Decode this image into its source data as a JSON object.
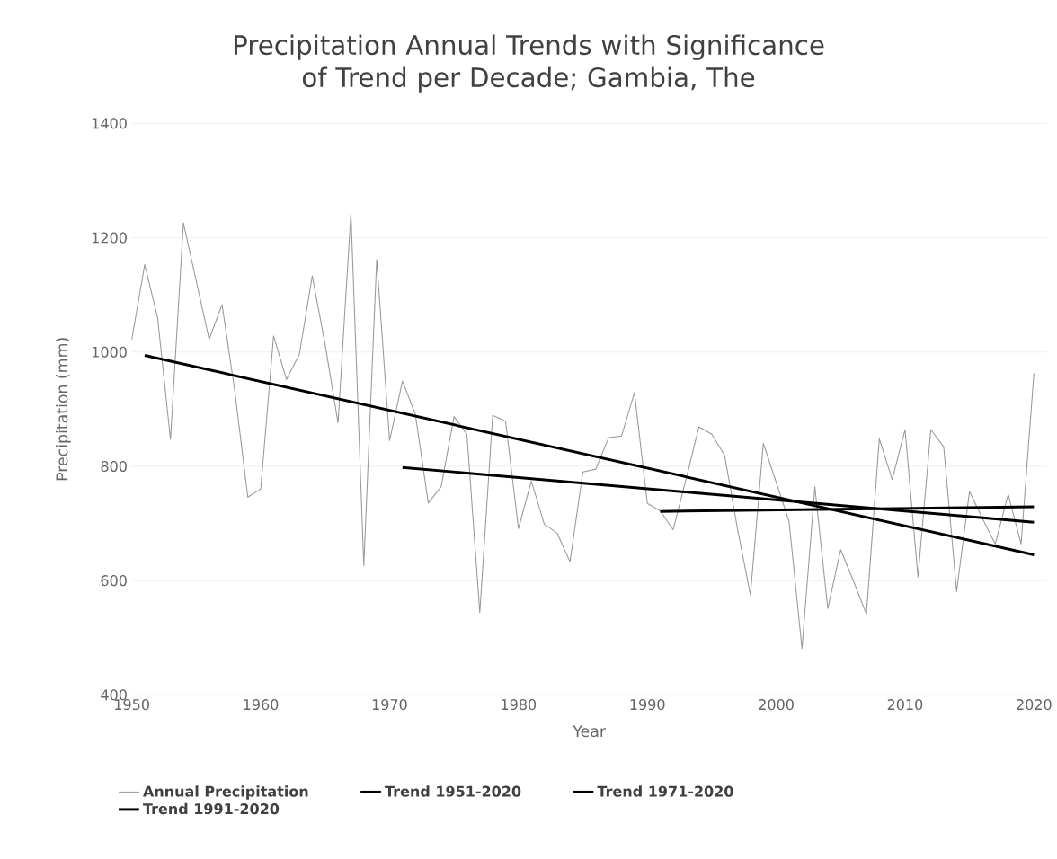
{
  "chart_data": {
    "type": "line",
    "title": "Precipitation Annual Trends with Significance of Trend per Decade; Gambia, The",
    "xlabel": "Year",
    "ylabel": "Precipitation (mm)",
    "x": [
      1950,
      1951,
      1952,
      1953,
      1954,
      1955,
      1956,
      1957,
      1958,
      1959,
      1960,
      1961,
      1962,
      1963,
      1964,
      1965,
      1966,
      1967,
      1968,
      1969,
      1970,
      1971,
      1972,
      1973,
      1974,
      1975,
      1976,
      1977,
      1978,
      1979,
      1980,
      1981,
      1982,
      1983,
      1984,
      1985,
      1986,
      1987,
      1988,
      1989,
      1990,
      1991,
      1992,
      1993,
      1994,
      1995,
      1996,
      1997,
      1998,
      1999,
      2000,
      2001,
      2002,
      2003,
      2004,
      2005,
      2006,
      2007,
      2008,
      2009,
      2010,
      2011,
      2012,
      2013,
      2014,
      2015,
      2016,
      2017,
      2018,
      2019,
      2020
    ],
    "series": [
      {
        "name": "Annual Precipitation",
        "color": "#999999",
        "values": [
          1022,
          1153,
          1060,
          847,
          1226,
          1124,
          1022,
          1083,
          930,
          746,
          760,
          1028,
          952,
          996,
          1133,
          1013,
          876,
          1243,
          626,
          1162,
          845,
          949,
          891,
          736,
          764,
          887,
          856,
          544,
          889,
          879,
          691,
          774,
          699,
          683,
          633,
          790,
          795,
          850,
          853,
          929,
          735,
          722,
          689,
          777,
          869,
          856,
          819,
          690,
          575,
          840,
          772,
          703,
          481,
          764,
          551,
          654,
          599,
          541,
          848,
          777,
          864,
          606,
          864,
          834,
          581,
          756,
          709,
          664,
          751,
          664,
          963
        ]
      },
      {
        "name": "Trend 1951-2020",
        "color": "#000000",
        "x": [
          1951,
          2020
        ],
        "values": [
          994,
          645
        ]
      },
      {
        "name": "Trend 1971-2020",
        "color": "#000000",
        "x": [
          1971,
          2020
        ],
        "values": [
          798,
          702
        ]
      },
      {
        "name": "Trend 1991-2020",
        "color": "#000000",
        "x": [
          1991,
          2020
        ],
        "values": [
          721,
          729
        ]
      }
    ],
    "xlim": [
      1950,
      2021
    ],
    "ylim": [
      400,
      1400
    ],
    "xticks": [
      1950,
      1960,
      1970,
      1980,
      1990,
      2000,
      2010,
      2020
    ],
    "yticks": [
      400,
      600,
      800,
      1000,
      1200,
      1400
    ],
    "grid": "y",
    "legend": "bottom"
  }
}
